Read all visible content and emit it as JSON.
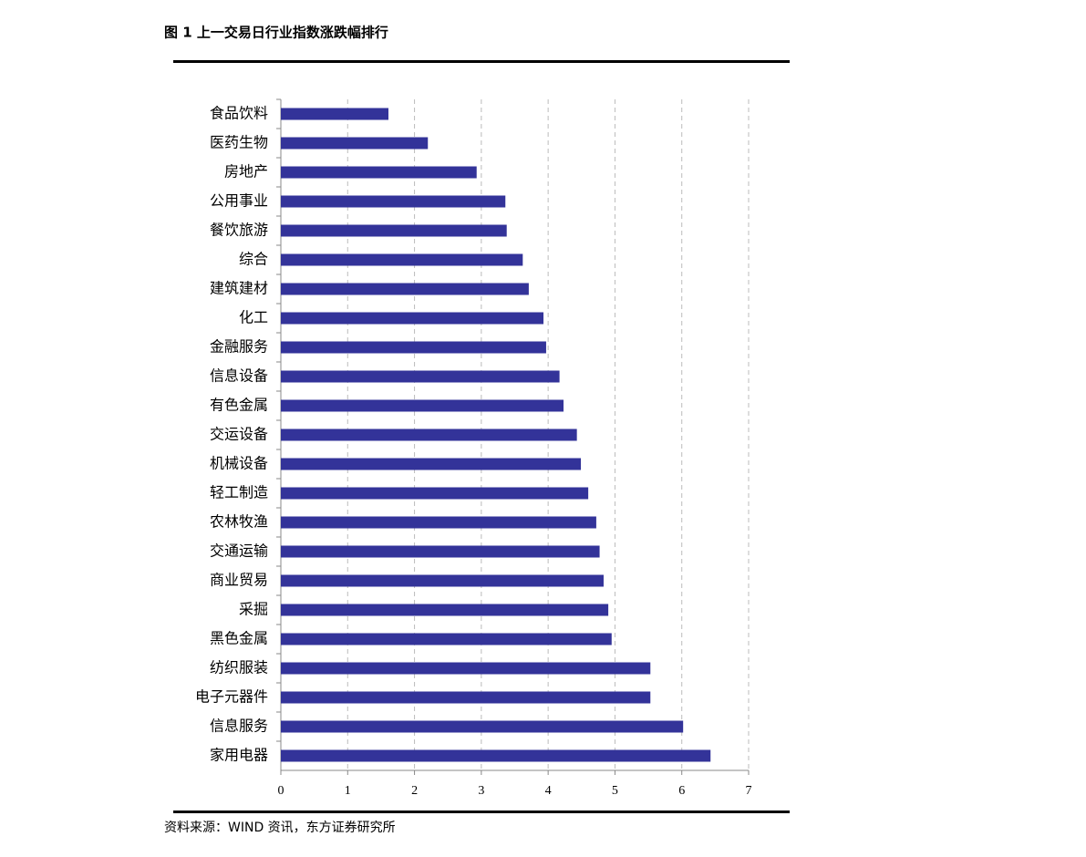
{
  "chart_data": {
    "type": "hbar",
    "title": "图 1  上一交易日行业指数涨跌幅排行",
    "source": "资料来源：WIND 资讯，东方证券研究所",
    "categories": [
      "食品饮料",
      "医药生物",
      "房地产",
      "公用事业",
      "餐饮旅游",
      "综合",
      "建筑建材",
      "化工",
      "金融服务",
      "信息设备",
      "有色金属",
      "交运设备",
      "机械设备",
      "轻工制造",
      "农林牧渔",
      "交通运输",
      "商业贸易",
      "采掘",
      "黑色金属",
      "纺织服装",
      "电子元器件",
      "信息服务",
      "家用电器"
    ],
    "values": [
      1.61,
      2.2,
      2.93,
      3.36,
      3.38,
      3.62,
      3.71,
      3.93,
      3.97,
      4.17,
      4.23,
      4.43,
      4.49,
      4.6,
      4.72,
      4.77,
      4.83,
      4.9,
      4.95,
      5.53,
      5.53,
      6.02,
      6.43
    ],
    "color": "#333399",
    "xlim": [
      0,
      7
    ],
    "xticks": [
      0,
      1,
      2,
      3,
      4,
      5,
      6,
      7
    ],
    "grid": true
  }
}
